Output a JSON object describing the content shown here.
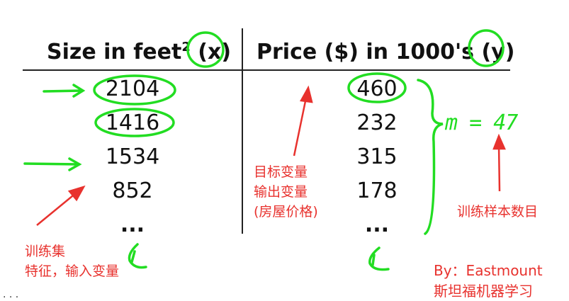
{
  "table": {
    "headers": {
      "x": "Size in feet",
      "x_sup": "2",
      "x_var": "(x)",
      "y": "Price ($) in 1000's",
      "y_var": "(y)"
    },
    "x_values": [
      "2104",
      "1416",
      "1534",
      "852",
      "..."
    ],
    "y_values": [
      "460",
      "232",
      "315",
      "178",
      "..."
    ]
  },
  "annotations": {
    "m": "m = 47",
    "training_set": "训练集",
    "features": "特征，输入变量",
    "target_1": "目标变量",
    "target_2": "输出变量",
    "target_3": "(房屋价格)",
    "sample_count": "训练样本数目",
    "by": "By：Eastmount",
    "blog": "斯坦福机器学习",
    "corner": ". . ."
  },
  "colors": {
    "annotation_green": "#22dd22",
    "annotation_red": "#e8322e"
  }
}
